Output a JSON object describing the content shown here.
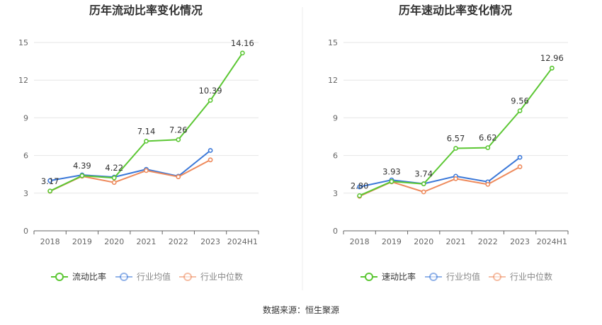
{
  "source_label": "数据来源：恒生聚源",
  "chart_data": [
    {
      "type": "line",
      "title": "历年流动比率变化情况",
      "categories": [
        "2018",
        "2019",
        "2020",
        "2021",
        "2022",
        "2023",
        "2024H1"
      ],
      "ylim": [
        0,
        15
      ],
      "yticks": [
        0,
        3,
        6,
        9,
        12,
        15
      ],
      "grid": true,
      "legend_position": "bottom",
      "series": [
        {
          "name": "流动比率",
          "color": "#5cc734",
          "values": [
            3.17,
            4.39,
            4.22,
            7.14,
            7.26,
            10.39,
            14.16
          ],
          "labels": [
            "3.17",
            "4.39",
            "4.22",
            "7.14",
            "7.26",
            "10.39",
            "14.16"
          ]
        },
        {
          "name": "行业均值",
          "color": "#3b78d8",
          "values": [
            4.0,
            4.45,
            4.28,
            4.9,
            4.35,
            6.4,
            null
          ]
        },
        {
          "name": "行业中位数",
          "color": "#ee8a5c",
          "values": [
            3.15,
            4.35,
            3.85,
            4.8,
            4.3,
            5.65,
            null
          ]
        }
      ]
    },
    {
      "type": "line",
      "title": "历年速动比率变化情况",
      "categories": [
        "2018",
        "2019",
        "2020",
        "2021",
        "2022",
        "2023",
        "2024H1"
      ],
      "ylim": [
        0,
        15
      ],
      "yticks": [
        0,
        3,
        6,
        9,
        12,
        15
      ],
      "grid": true,
      "legend_position": "bottom",
      "series": [
        {
          "name": "速动比率",
          "color": "#5cc734",
          "values": [
            2.8,
            3.93,
            3.74,
            6.57,
            6.62,
            9.56,
            12.96
          ],
          "labels": [
            "2.80",
            "3.93",
            "3.74",
            "6.57",
            "6.62",
            "9.56",
            "12.96"
          ]
        },
        {
          "name": "行业均值",
          "color": "#3b78d8",
          "values": [
            3.5,
            4.05,
            3.75,
            4.35,
            3.9,
            5.85,
            null
          ]
        },
        {
          "name": "行业中位数",
          "color": "#ee8a5c",
          "values": [
            2.75,
            3.9,
            3.1,
            4.15,
            3.7,
            5.1,
            null
          ]
        }
      ]
    }
  ]
}
